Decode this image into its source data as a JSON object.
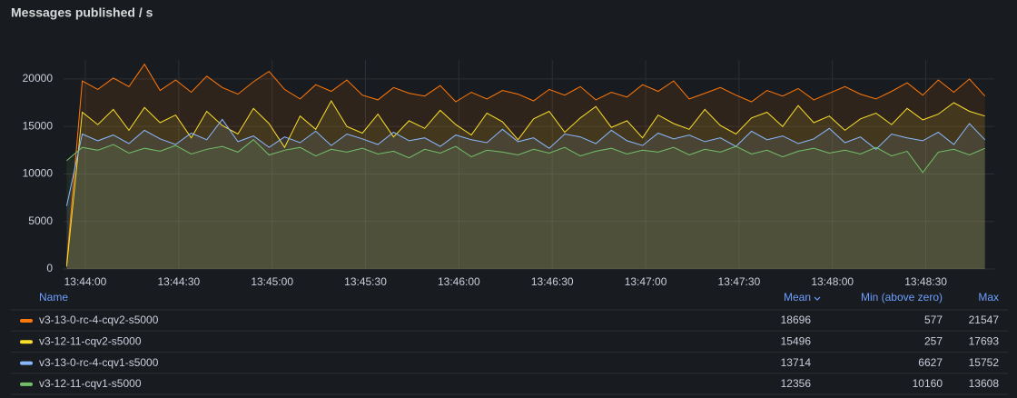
{
  "title": "Messages published / s",
  "chart_data": {
    "type": "line",
    "time_format": "HH:MM:SS",
    "x": [
      "13:43:54",
      "13:43:59",
      "13:44:04",
      "13:44:09",
      "13:44:14",
      "13:44:19",
      "13:44:24",
      "13:44:29",
      "13:44:34",
      "13:44:39",
      "13:44:44",
      "13:44:49",
      "13:44:54",
      "13:44:59",
      "13:45:04",
      "13:45:09",
      "13:45:14",
      "13:45:19",
      "13:45:24",
      "13:45:29",
      "13:45:34",
      "13:45:39",
      "13:45:44",
      "13:45:49",
      "13:45:54",
      "13:45:59",
      "13:46:04",
      "13:46:09",
      "13:46:14",
      "13:46:19",
      "13:46:24",
      "13:46:29",
      "13:46:34",
      "13:46:39",
      "13:46:44",
      "13:46:49",
      "13:46:54",
      "13:46:59",
      "13:47:04",
      "13:47:09",
      "13:47:14",
      "13:47:19",
      "13:47:24",
      "13:47:29",
      "13:47:34",
      "13:47:39",
      "13:47:44",
      "13:47:49",
      "13:47:54",
      "13:47:59",
      "13:48:04",
      "13:48:09",
      "13:48:14",
      "13:48:19",
      "13:48:24",
      "13:48:29",
      "13:48:34",
      "13:48:39",
      "13:48:44",
      "13:48:49"
    ],
    "xlim": [
      "13:43:53",
      "13:48:52"
    ],
    "xticks": [
      "13:44:00",
      "13:44:30",
      "13:45:00",
      "13:45:30",
      "13:46:00",
      "13:46:30",
      "13:47:00",
      "13:47:30",
      "13:48:00",
      "13:48:30"
    ],
    "ylim": [
      0,
      22000
    ],
    "yticks": [
      0,
      5000,
      10000,
      15000,
      20000
    ],
    "grid": true,
    "fill_opacity": 0.1,
    "legend_columns": [
      "Name",
      "Mean",
      "Min (above zero)",
      "Max"
    ],
    "series": [
      {
        "name": "v3-13-0-rc-4-cqv2-s5000",
        "color": "#ff780a",
        "mean": 18696,
        "min": 577,
        "max": 21547,
        "values": [
          577,
          19800,
          18900,
          20100,
          19200,
          21547,
          18800,
          19900,
          18600,
          20300,
          19100,
          18400,
          19700,
          20800,
          18900,
          17900,
          19400,
          18700,
          19900,
          18300,
          17800,
          19100,
          18500,
          18200,
          19300,
          17600,
          18600,
          17900,
          18800,
          18400,
          17700,
          18900,
          18300,
          19200,
          17800,
          18600,
          18100,
          19400,
          18700,
          19800,
          17900,
          18500,
          19100,
          18300,
          17600,
          18800,
          18200,
          19000,
          17800,
          18500,
          19200,
          18400,
          17900,
          18700,
          19600,
          18300,
          19900,
          18600,
          20000,
          18200
        ]
      },
      {
        "name": "v3-12-11-cqv2-s5000",
        "color": "#fade2a",
        "mean": 15496,
        "min": 257,
        "max": 17693,
        "values": [
          257,
          16500,
          15200,
          16800,
          14600,
          17000,
          15400,
          16200,
          13800,
          16600,
          15100,
          14200,
          16900,
          15300,
          12800,
          16100,
          14700,
          17693,
          15000,
          14300,
          16300,
          13900,
          15600,
          14800,
          16700,
          15200,
          14100,
          16400,
          15500,
          13600,
          15800,
          16600,
          14400,
          15900,
          17100,
          14900,
          15600,
          13800,
          16200,
          15300,
          14700,
          16800,
          15100,
          14200,
          15900,
          16500,
          15000,
          17200,
          15400,
          16100,
          14600,
          15800,
          16400,
          15200,
          16900,
          15700,
          16300,
          17500,
          16600,
          16100
        ]
      },
      {
        "name": "v3-13-0-rc-4-cqv1-s5000",
        "color": "#8ab8ff",
        "mean": 13714,
        "min": 6627,
        "max": 15752,
        "values": [
          6627,
          14200,
          13500,
          14100,
          13200,
          14600,
          13700,
          13100,
          14300,
          13600,
          15752,
          13400,
          14000,
          12800,
          13900,
          13300,
          14500,
          13000,
          14200,
          13700,
          13100,
          14400,
          13500,
          13800,
          12900,
          14100,
          13600,
          13300,
          14700,
          13400,
          13800,
          12700,
          14200,
          13900,
          13200,
          14600,
          13500,
          13000,
          14300,
          13700,
          14100,
          13400,
          13800,
          12900,
          14500,
          13600,
          14000,
          13200,
          13700,
          14800,
          13300,
          13900,
          12600,
          14200,
          13800,
          13500,
          14400,
          13100,
          15300,
          13600
        ]
      },
      {
        "name": "v3-12-11-cqv1-s5000",
        "color": "#73bf69",
        "mean": 12356,
        "min": 10160,
        "max": 13608,
        "values": [
          11400,
          12800,
          12500,
          13100,
          12200,
          12700,
          12400,
          13000,
          12100,
          12600,
          12900,
          12300,
          13608,
          12000,
          12500,
          12800,
          11900,
          12600,
          12300,
          12700,
          12100,
          12400,
          11700,
          12600,
          12200,
          12900,
          11800,
          12500,
          12300,
          12000,
          12600,
          12200,
          12800,
          11900,
          12400,
          12700,
          12100,
          12500,
          12300,
          12800,
          12000,
          12600,
          12300,
          12900,
          12100,
          12500,
          11800,
          12400,
          12700,
          12200,
          12500,
          12100,
          12800,
          11900,
          12400,
          10160,
          12300,
          12600,
          12000,
          12700
        ]
      }
    ]
  }
}
